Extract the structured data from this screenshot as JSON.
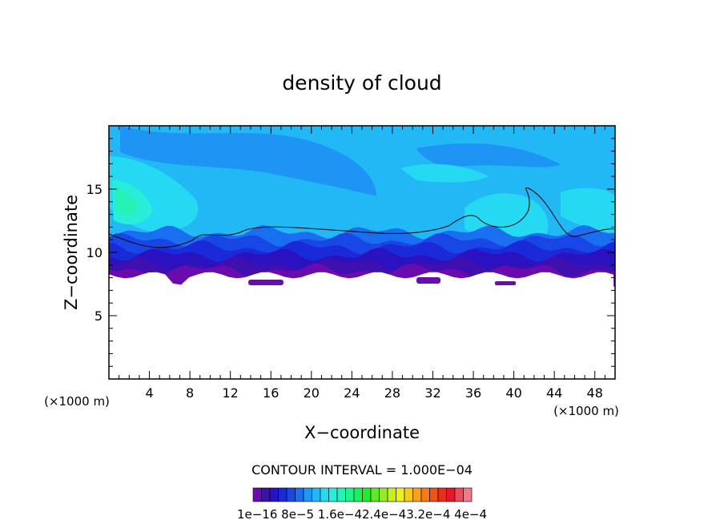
{
  "chart_data": {
    "type": "heatmap",
    "title": "density of cloud",
    "xlabel": "X−coordinate",
    "ylabel": "Z−coordinate",
    "x_units": "(×1000 m)",
    "y_units": "(×1000 m)",
    "xlim": [
      0,
      50
    ],
    "ylim": [
      0,
      20
    ],
    "x_ticks": [
      4,
      8,
      12,
      16,
      20,
      24,
      28,
      32,
      36,
      40,
      44,
      48
    ],
    "y_ticks": [
      5,
      10,
      15
    ],
    "contour_interval_text": "CONTOUR INTERVAL = 1.000E−04",
    "colorbar": {
      "colors": [
        "#6a0cad",
        "#3f0fb0",
        "#2a12c0",
        "#1a2ad8",
        "#1947e6",
        "#1a6ff0",
        "#1e95f5",
        "#22b8f6",
        "#26d9f2",
        "#28eed9",
        "#26f2b5",
        "#22f28c",
        "#1fef5f",
        "#28e830",
        "#5ee82a",
        "#96ea27",
        "#c9ec24",
        "#f2ed21",
        "#f7c91f",
        "#f7a21d",
        "#f57a1b",
        "#f25119",
        "#ee2d18",
        "#e8182c",
        "#ef4a5c",
        "#f27a86"
      ],
      "labels": [
        "1e−16",
        "8e−5",
        "1.6e−4",
        "2.4e−4",
        "3.2e−4",
        "4e−4"
      ],
      "label_text": "1e−16  8e−5  1.6e−42.4e−43.2e−4  4e−4"
    },
    "field_summary": {
      "cloud_base_km": 7.3,
      "dense_layer_km": [
        7.5,
        10.5
      ],
      "cloud_top_km": 20,
      "max_region": {
        "x_km": [
          0,
          5
        ],
        "z_km": [
          12.5,
          16
        ]
      },
      "contour_level": "1.000E−04"
    },
    "legend": "bottom"
  }
}
